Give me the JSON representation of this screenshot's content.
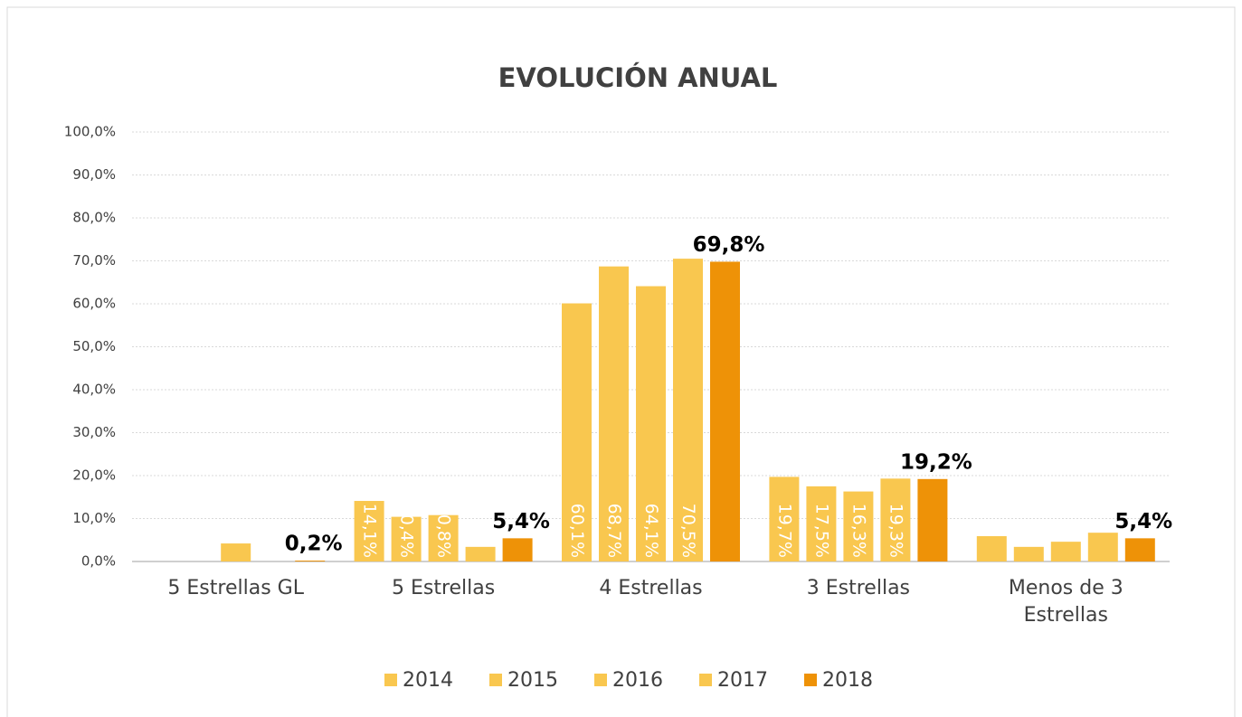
{
  "chart_data": {
    "type": "bar",
    "title": "EVOLUCIÓN ANUAL",
    "categories": [
      "5 Estrellas GL",
      "5 Estrellas",
      "4 Estrellas",
      "3 Estrellas",
      "Menos de 3 Estrellas"
    ],
    "series": [
      {
        "name": "2014",
        "color": "#f9c74f",
        "values": [
          0,
          14.1,
          60.1,
          19.7,
          5.9
        ],
        "value_labels": [
          null,
          "14,1%",
          "60,1%",
          "19,7%",
          null
        ]
      },
      {
        "name": "2015",
        "color": "#f9c74f",
        "values": [
          0,
          10.4,
          68.7,
          17.5,
          3.4
        ],
        "value_labels": [
          null,
          "10,4%",
          "68,7%",
          "17,5%",
          null
        ]
      },
      {
        "name": "2016",
        "color": "#f9c74f",
        "values": [
          4.2,
          10.8,
          64.1,
          16.3,
          4.6
        ],
        "value_labels": [
          null,
          "10,8%",
          "64,1%",
          "16,3%",
          null
        ]
      },
      {
        "name": "2017",
        "color": "#f9c74f",
        "values": [
          0,
          3.4,
          70.5,
          19.3,
          6.7
        ],
        "value_labels": [
          null,
          null,
          "70,5%",
          "19,3%",
          null
        ]
      },
      {
        "name": "2018",
        "color": "#ee9207",
        "values": [
          0.2,
          5.4,
          69.8,
          19.2,
          5.4
        ],
        "value_labels": [
          "0,2%",
          "5,4%",
          "69,8%",
          "19,2%",
          "5,4%"
        ]
      }
    ],
    "ylim": [
      0,
      100
    ],
    "yticks": [
      {
        "value": 0,
        "label": "0,0%"
      },
      {
        "value": 10,
        "label": "10,0%"
      },
      {
        "value": 20,
        "label": "20,0%"
      },
      {
        "value": 30,
        "label": "30,0%"
      },
      {
        "value": 40,
        "label": "40,0%"
      },
      {
        "value": 50,
        "label": "50,0%"
      },
      {
        "value": 60,
        "label": "60,0%"
      },
      {
        "value": 70,
        "label": "70,0%"
      },
      {
        "value": 80,
        "label": "80,0%"
      },
      {
        "value": 90,
        "label": "90,0%"
      },
      {
        "value": 100,
        "label": "100,0%"
      }
    ],
    "grid": true,
    "legend": "bottom"
  }
}
